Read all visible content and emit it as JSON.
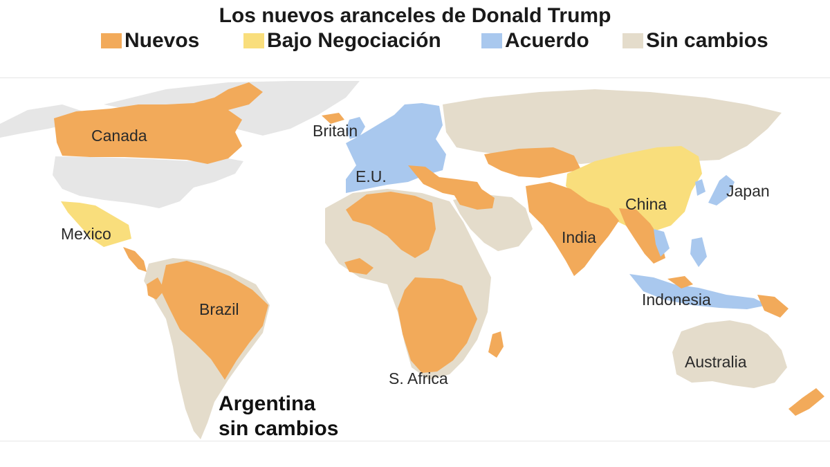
{
  "title": "Los nuevos aranceles de Donald Trump",
  "legend": [
    {
      "label": "Nuevos",
      "color": "#f2aa5a"
    },
    {
      "label": "Bajo Negociación",
      "color": "#f9de7c"
    },
    {
      "label": "Acuerdo",
      "color": "#a9c8ee"
    },
    {
      "label": "Sin cambios",
      "color": "#e4dccb"
    }
  ],
  "colors": {
    "nuevos": "#f2aa5a",
    "negociacion": "#f9de7c",
    "acuerdo": "#a9c8ee",
    "sin_cambios": "#e4dccb",
    "no_data": "#e6e6e6"
  },
  "map_labels": {
    "canada": "Canada",
    "britain": "Britain",
    "eu": "E.U.",
    "japan": "Japan",
    "china": "China",
    "mexico": "Mexico",
    "india": "India",
    "brazil": "Brazil",
    "indonesia": "Indonesia",
    "south_africa": "S. Africa",
    "australia": "Australia"
  },
  "annotation": {
    "line1": "Argentina",
    "line2": "sin cambios"
  }
}
